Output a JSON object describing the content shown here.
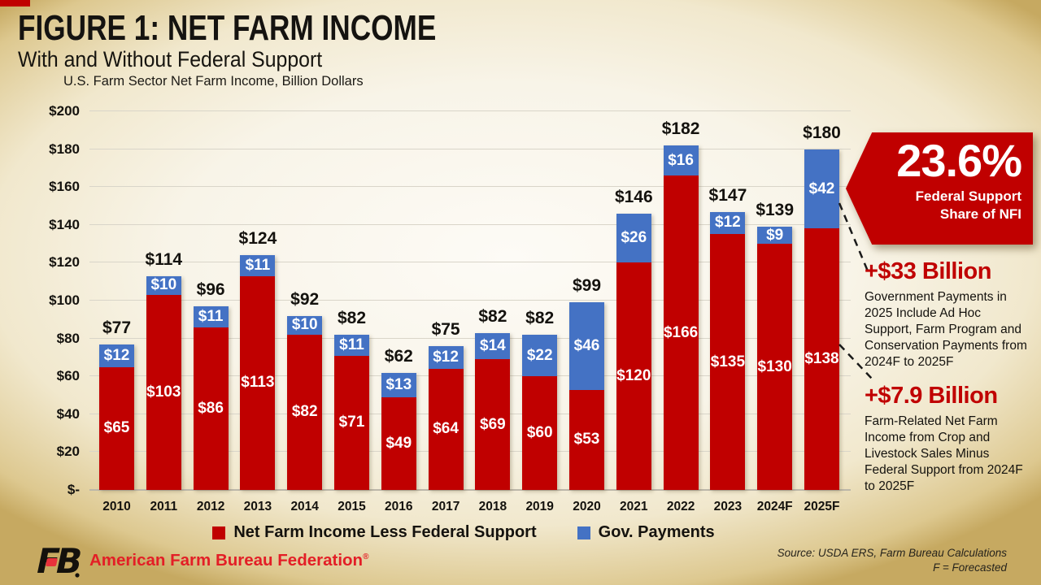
{
  "colors": {
    "accent_red": "#C00000",
    "gov_blue": "#4472C4",
    "footer_red": "#E31E26"
  },
  "header": {
    "title": "FIGURE 1: NET FARM INCOME",
    "subtitle": "With and Without Federal Support"
  },
  "chart_data": {
    "type": "bar",
    "stacked": true,
    "title": "U.S. Farm Sector Net Farm Income, Billion Dollars",
    "xlabel": "",
    "ylabel": "Billion Dollars",
    "categories": [
      "2010",
      "2011",
      "2012",
      "2013",
      "2014",
      "2015",
      "2016",
      "2017",
      "2018",
      "2019",
      "2020",
      "2021",
      "2022",
      "2023",
      "2024F",
      "2025F"
    ],
    "series": [
      {
        "name": "Net Farm Income Less Federal Support",
        "color": "#C00000",
        "values": [
          65,
          103,
          86,
          113,
          82,
          71,
          49,
          64,
          69,
          60,
          53,
          120,
          166,
          135,
          130,
          138
        ]
      },
      {
        "name": "Gov. Payments",
        "color": "#4472C4",
        "values": [
          12,
          10,
          11,
          11,
          10,
          11,
          13,
          12,
          14,
          22,
          46,
          26,
          16,
          12,
          9,
          42
        ]
      }
    ],
    "totals": [
      77,
      114,
      96,
      124,
      92,
      82,
      62,
      75,
      82,
      82,
      99,
      146,
      182,
      147,
      139,
      180
    ],
    "value_prefix": "$",
    "y_axis": {
      "min": 0,
      "max": 200,
      "step": 20,
      "ticks": [
        "$200",
        "$180",
        "$160",
        "$140",
        "$120",
        "$100",
        "$80",
        "$60",
        "$40",
        "$20",
        "$-"
      ]
    },
    "grid": true,
    "legend_position": "bottom"
  },
  "callouts": {
    "share_badge": {
      "value": "23.6%",
      "caption_line1": "Federal Support",
      "caption_line2": "Share of NFI"
    },
    "gov_payments": {
      "heading": "+$33 Billion",
      "body": "Government Payments in 2025 Include Ad Hoc Support, Farm Program and Conservation Payments from 2024F to 2025F"
    },
    "farm_income": {
      "heading": "+$7.9 Billion",
      "body": "Farm-Related Net Farm Income from Crop and Livestock Sales Minus Federal Support from 2024F to 2025F"
    }
  },
  "footer": {
    "logo_text": "FB",
    "org": "American Farm Bureau Federation",
    "reg_mark": "®",
    "source_line1": "Source: USDA ERS, Farm Bureau Calculations",
    "source_line2": "F = Forecasted"
  }
}
